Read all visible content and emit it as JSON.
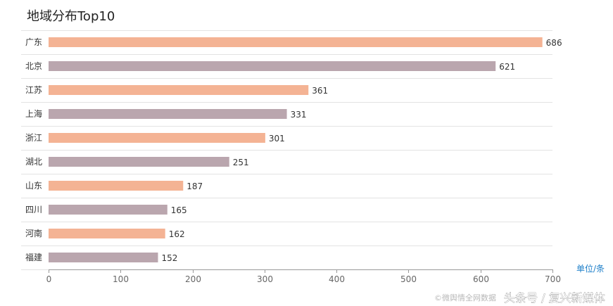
{
  "chart_data": {
    "type": "bar",
    "orientation": "horizontal",
    "title": "地域分布Top10",
    "unit_label": "单位/条",
    "categories": [
      "广东",
      "北京",
      "江苏",
      "上海",
      "浙江",
      "湖北",
      "山东",
      "四川",
      "河南",
      "福建"
    ],
    "values": [
      686,
      621,
      361,
      331,
      301,
      251,
      187,
      165,
      162,
      152
    ],
    "xlim": [
      0,
      700
    ],
    "xticks": [
      "0",
      "100",
      "200",
      "300",
      "400",
      "500",
      "600",
      "700"
    ],
    "grid": true,
    "colors": [
      "#f4b394",
      "#baa6ae"
    ]
  },
  "watermark": {
    "source": "©微舆情全网数据",
    "author": "头条号 / 复兴新媒体"
  }
}
